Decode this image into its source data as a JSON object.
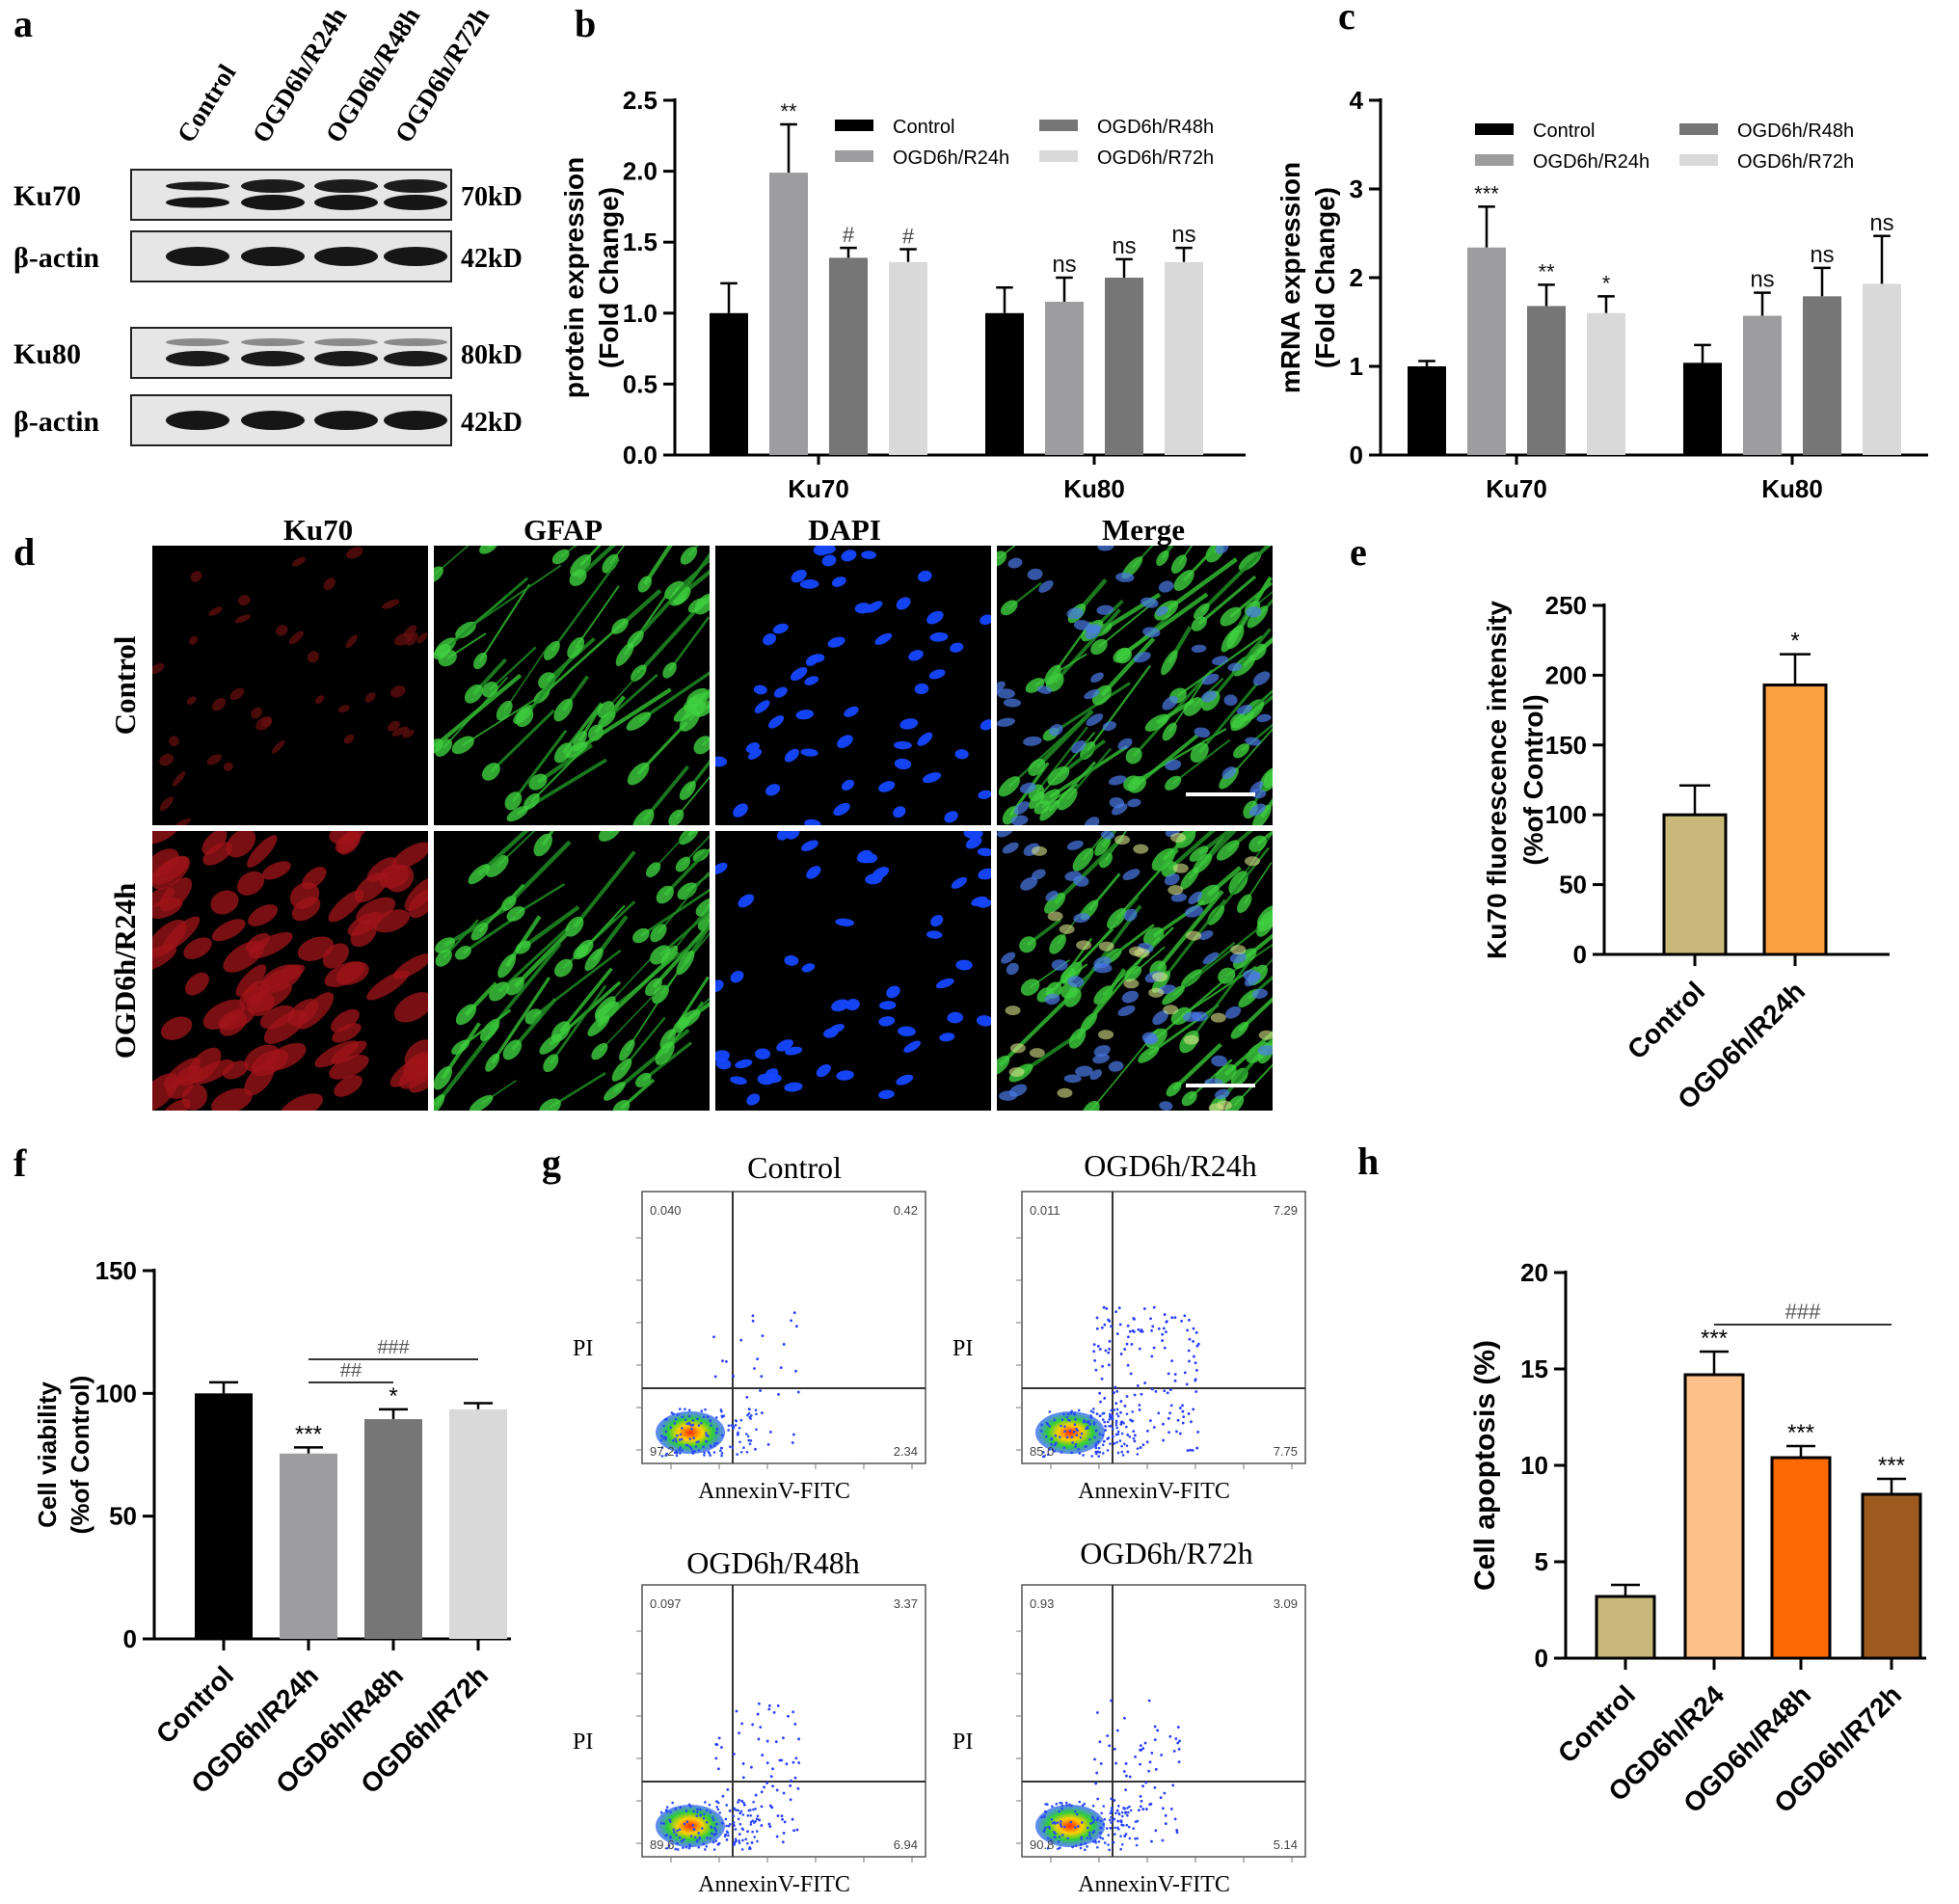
{
  "panel_letters": [
    "a",
    "b",
    "c",
    "d",
    "e",
    "f",
    "g",
    "h"
  ],
  "western_blot": {
    "lanes": [
      "Control",
      "OGD6h/R24h",
      "OGD6h/R48h",
      "OGD6h/R72h"
    ],
    "rows": [
      {
        "name": "Ku70",
        "mw": "70kD"
      },
      {
        "name": "β-actin",
        "mw": "42kD"
      },
      {
        "name": "Ku80",
        "mw": "80kD"
      },
      {
        "name": "β-actin",
        "mw": "42kD"
      }
    ]
  },
  "microscopy": {
    "column_titles": [
      "Ku70",
      "GFAP",
      "DAPI",
      "Merge"
    ],
    "row_titles": [
      "Control",
      "OGD6h/R24h"
    ]
  },
  "flow": {
    "x_label": "AnnexinV-FITC",
    "y_label": "PI",
    "plots": [
      {
        "title": "Control",
        "q_ul": "0.040",
        "q_ur": "0.42",
        "q_ll": "97.2",
        "q_lr": "2.34"
      },
      {
        "title": "OGD6h/R24h",
        "q_ul": "0.011",
        "q_ur": "7.29",
        "q_ll": "85.0",
        "q_lr": "7.75"
      },
      {
        "title": "OGD6h/R48h",
        "q_ul": "0.097",
        "q_ur": "3.37",
        "q_ll": "89.6",
        "q_lr": "6.94"
      },
      {
        "title": "OGD6h/R72h",
        "q_ul": "0.93",
        "q_ur": "3.09",
        "q_ll": "90.8",
        "q_lr": "5.14"
      }
    ]
  },
  "colors": {
    "control": "#000000",
    "r24": "#9d9d9f",
    "r48": "#767676",
    "r72": "#d9d9d9",
    "e_control": "#c8b97a",
    "e_r24": "#fba040",
    "h_control": "#c8b97a",
    "h_r24": "#fdc089",
    "h_r48": "#fd6a02",
    "h_r72": "#9c5a1e"
  },
  "chart_data": [
    {
      "id": "b",
      "type": "bar",
      "categories": [
        "Ku70",
        "Ku80"
      ],
      "ylabel_line1": "protein expression",
      "ylabel_line2": "(Fold Change)",
      "ylim": [
        0,
        2.5
      ],
      "yticks": [
        "0.0",
        "0.5",
        "1.0",
        "1.5",
        "2.0",
        "2.5"
      ],
      "legend_placement": "top-right",
      "series": [
        {
          "name": "Control",
          "values": [
            1.0,
            1.0
          ],
          "errors": [
            0.21,
            0.18
          ],
          "marks": [
            "",
            ""
          ]
        },
        {
          "name": "OGD6h/R24h",
          "values": [
            1.99,
            1.08
          ],
          "errors": [
            0.34,
            0.17
          ],
          "marks": [
            "**",
            "ns"
          ]
        },
        {
          "name": "OGD6h/R48h",
          "values": [
            1.39,
            1.25
          ],
          "errors": [
            0.07,
            0.13
          ],
          "marks": [
            "#",
            "ns"
          ]
        },
        {
          "name": "OGD6h/R72h",
          "values": [
            1.36,
            1.36
          ],
          "errors": [
            0.09,
            0.1
          ],
          "marks": [
            "#",
            "ns"
          ]
        }
      ]
    },
    {
      "id": "c",
      "type": "bar",
      "categories": [
        "Ku70",
        "Ku80"
      ],
      "ylabel_line1": "mRNA expression",
      "ylabel_line2": "(Fold Change)",
      "ylim": [
        0,
        4
      ],
      "yticks": [
        "0",
        "1",
        "2",
        "3",
        "4"
      ],
      "legend_placement": "top-right",
      "series": [
        {
          "name": "Control",
          "values": [
            1.0,
            1.04
          ],
          "errors": [
            0.06,
            0.2
          ],
          "marks": [
            "",
            ""
          ]
        },
        {
          "name": "OGD6h/R24h",
          "values": [
            2.34,
            1.57
          ],
          "errors": [
            0.46,
            0.26
          ],
          "marks": [
            "***",
            "ns"
          ]
        },
        {
          "name": "OGD6h/R48h",
          "values": [
            1.68,
            1.79
          ],
          "errors": [
            0.24,
            0.32
          ],
          "marks": [
            "**",
            "ns"
          ]
        },
        {
          "name": "OGD6h/R72h",
          "values": [
            1.6,
            1.93
          ],
          "errors": [
            0.19,
            0.54
          ],
          "marks": [
            "*",
            "ns"
          ]
        }
      ]
    },
    {
      "id": "e",
      "type": "bar",
      "categories": [
        "Control",
        "OGD6h/R24h"
      ],
      "ylabel_line1": "Ku70 fluorescence intensity",
      "ylabel_line2": "(%of Control)",
      "ylim": [
        0,
        250
      ],
      "yticks": [
        "0",
        "50",
        "100",
        "150",
        "200",
        "250"
      ],
      "values": [
        100,
        193
      ],
      "errors": [
        21,
        22
      ],
      "marks": [
        "",
        "*"
      ]
    },
    {
      "id": "f",
      "type": "bar",
      "categories": [
        "Control",
        "OGD6h/R24h",
        "OGD6h/R48h",
        "OGD6h/R72h"
      ],
      "ylabel_line1": "Cell viability",
      "ylabel_line2": "(%of Control)",
      "ylim": [
        0,
        150
      ],
      "yticks": [
        "0",
        "50",
        "100",
        "150"
      ],
      "values": [
        100,
        75.5,
        89.5,
        93.5
      ],
      "errors": [
        4.5,
        2.5,
        4.0,
        2.5
      ],
      "marks": [
        "",
        "***",
        "*",
        ""
      ],
      "brackets": [
        {
          "from": 1,
          "to": 2,
          "label": "##"
        },
        {
          "from": 1,
          "to": 3,
          "label": "###"
        }
      ]
    },
    {
      "id": "h",
      "type": "bar",
      "categories": [
        "Control",
        "OGD6h/R24",
        "OGD6h/R48h",
        "OGD6h/R72h"
      ],
      "ylabel_line1": "Cell apoptosis (%)",
      "ylim": [
        0,
        20
      ],
      "yticks": [
        "0",
        "5",
        "10",
        "15",
        "20"
      ],
      "values": [
        3.2,
        14.7,
        10.4,
        8.5
      ],
      "errors": [
        0.6,
        1.2,
        0.6,
        0.8
      ],
      "marks": [
        "",
        "***",
        "***",
        "***"
      ],
      "brackets": [
        {
          "from": 1,
          "to": 3,
          "label": "###"
        }
      ]
    }
  ]
}
